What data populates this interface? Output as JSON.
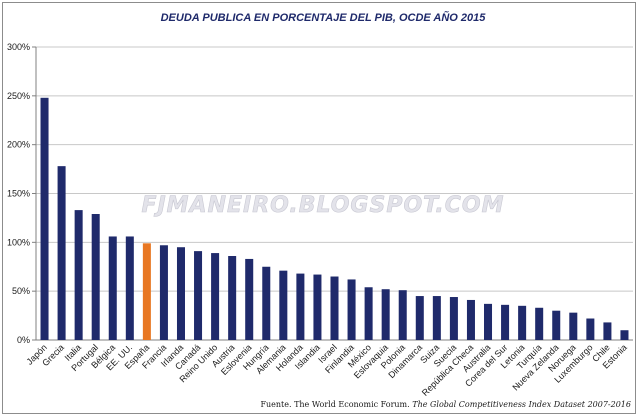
{
  "chart_data": {
    "type": "bar",
    "title": "DEUDA PUBLICA EN PORCENTAJE DEL PIB, OCDE AÑO 2015",
    "xlabel": "",
    "ylabel": "",
    "ylim": [
      0,
      300
    ],
    "y_ticks": [
      0,
      50,
      100,
      150,
      200,
      250,
      300
    ],
    "y_tick_labels": [
      "0%",
      "50%",
      "100%",
      "150%",
      "200%",
      "250%",
      "300%"
    ],
    "grid": true,
    "legend": "none",
    "categories": [
      "Japón",
      "Grecia",
      "Italia",
      "Portugal",
      "Bélgica",
      "EE. UU.",
      "España",
      "Francia",
      "Irlanda",
      "Canadá",
      "Reino Unido",
      "Austria",
      "Eslovenia",
      "Hungría",
      "Alemania",
      "Holanda",
      "Islandia",
      "Israel",
      "Finlandia",
      "México",
      "Eslovaquia",
      "Polonia",
      "Dinamarca",
      "Suiza",
      "Suecia",
      "República Checa",
      "Australia",
      "Corea del Sur",
      "Letonia",
      "Turquía",
      "Nueva Zelanda",
      "Noruega",
      "Luxemburgo",
      "Chile",
      "Estonia"
    ],
    "values": [
      248,
      178,
      133,
      129,
      106,
      106,
      99,
      97,
      95,
      91,
      89,
      86,
      83,
      75,
      71,
      68,
      67,
      65,
      62,
      54,
      52,
      51,
      45,
      45,
      44,
      41,
      37,
      36,
      35,
      33,
      30,
      28,
      22,
      18,
      10
    ],
    "highlight_category": "España",
    "colors": {
      "bar": "#1f2a6b",
      "highlight": "#e87722",
      "grid": "#c8c8c8",
      "axis": "#808080"
    },
    "watermark": "FJMANEIRO.BLOGSPOT.COM",
    "source_prefix": "Fuente. The World Economic Forum. ",
    "source_italic": "The Global Competitiveness Index Dataset 2007-2016"
  }
}
